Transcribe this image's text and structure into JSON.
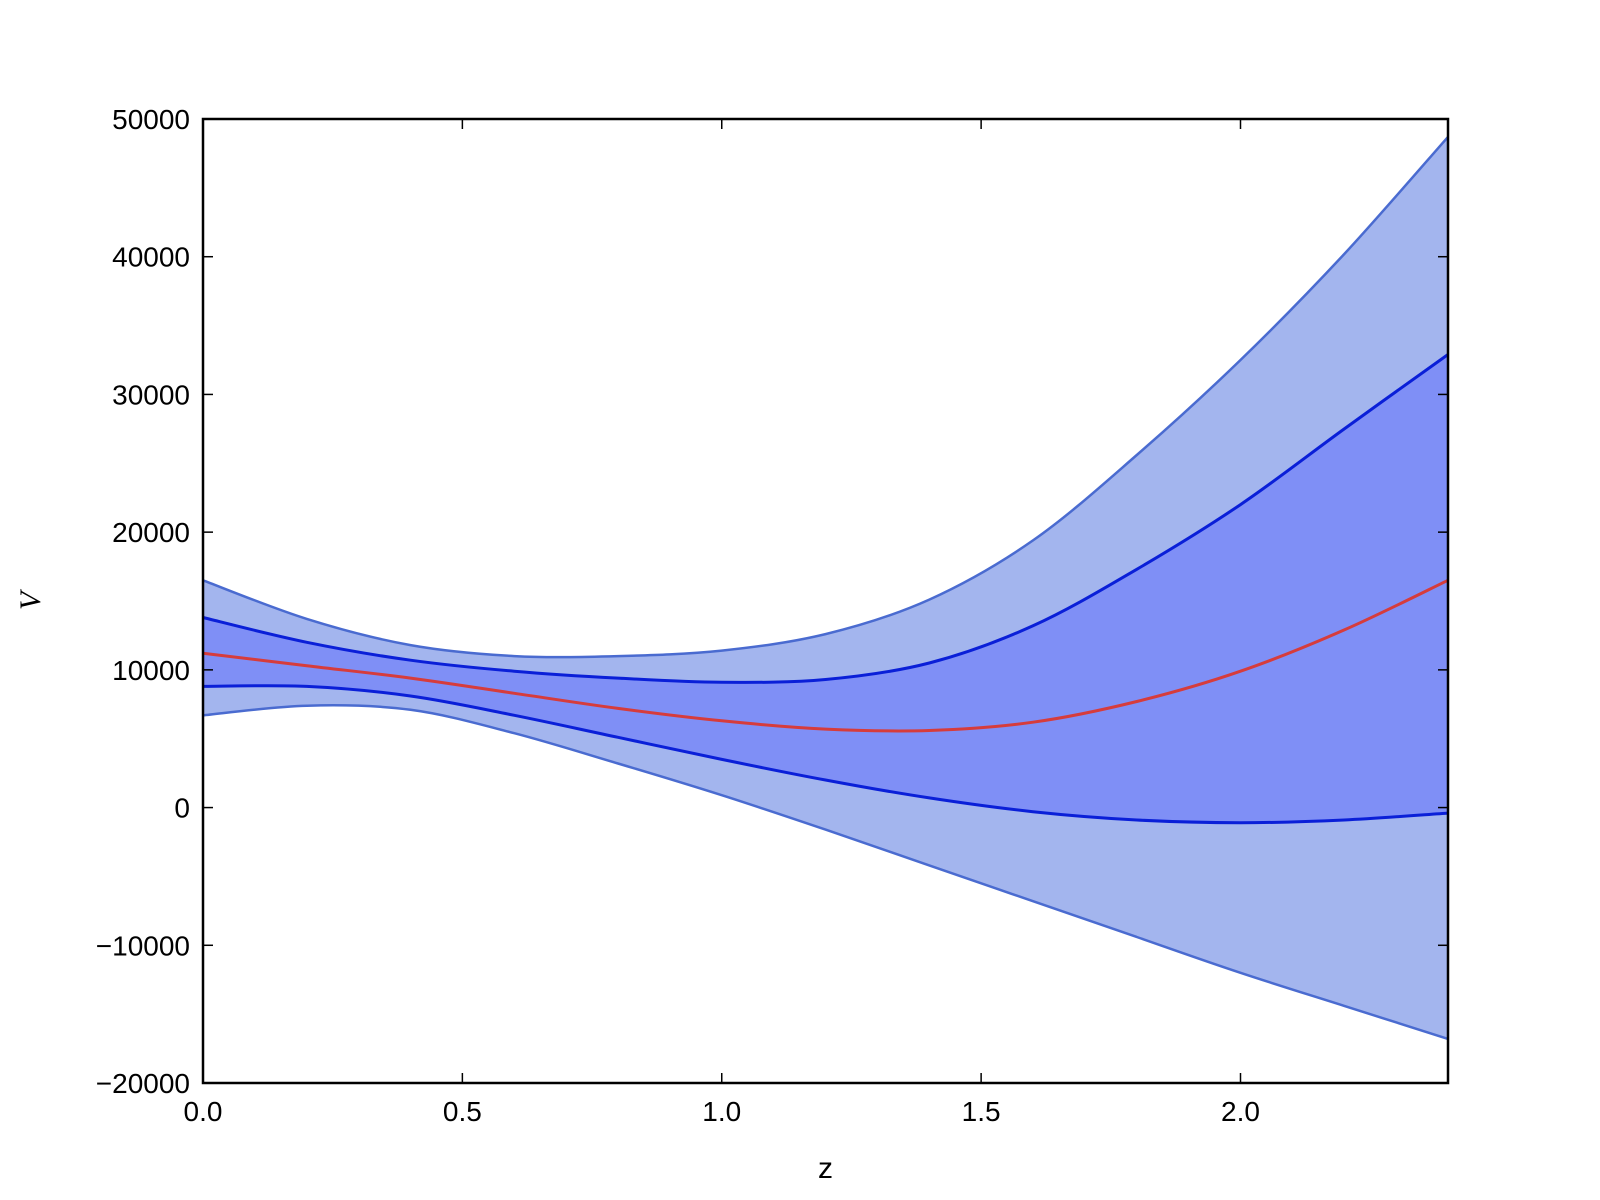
{
  "chart_data": {
    "type": "area",
    "title": "",
    "xlabel": "z",
    "ylabel": "V",
    "xlim": [
      0.0,
      2.4
    ],
    "ylim": [
      -20000,
      50000
    ],
    "xticks": [
      0.0,
      0.5,
      1.0,
      1.5,
      2.0
    ],
    "xtick_labels": [
      "0.0",
      "0.5",
      "1.0",
      "1.5",
      "2.0"
    ],
    "yticks": [
      -20000,
      -10000,
      0,
      10000,
      20000,
      30000,
      40000,
      50000
    ],
    "ytick_labels": [
      "−20000",
      "−10000",
      "0",
      "10000",
      "20000",
      "30000",
      "40000",
      "50000"
    ],
    "grid": false,
    "x": [
      0.0,
      0.2,
      0.4,
      0.6,
      0.8,
      1.0,
      1.2,
      1.4,
      1.6,
      1.8,
      2.0,
      2.2,
      2.4
    ],
    "series": [
      {
        "role": "outer_upper",
        "color": "#4a6bd0",
        "values": [
          16500,
          13700,
          11800,
          11000,
          11000,
          11400,
          12600,
          15100,
          19400,
          25600,
          32500,
          40200,
          48700
        ]
      },
      {
        "role": "inner_upper",
        "color": "#0a1fd8",
        "values": [
          13800,
          12000,
          10700,
          9900,
          9400,
          9100,
          9300,
          10500,
          13200,
          17300,
          22000,
          27500,
          32900
        ]
      },
      {
        "role": "mean",
        "color": "#d63c3c",
        "values": [
          11200,
          10300,
          9400,
          8300,
          7200,
          6300,
          5700,
          5600,
          6200,
          7700,
          9900,
          12900,
          16500
        ]
      },
      {
        "role": "inner_lower",
        "color": "#0a1fd8",
        "values": [
          8800,
          8800,
          8100,
          6700,
          5100,
          3500,
          2000,
          700,
          -300,
          -900,
          -1100,
          -900,
          -400
        ]
      },
      {
        "role": "outer_lower",
        "color": "#4a6bd0",
        "values": [
          6700,
          7400,
          7100,
          5400,
          3200,
          900,
          -1600,
          -4200,
          -6800,
          -9400,
          -12000,
          -14400,
          -16800
        ]
      }
    ],
    "band_colors": {
      "outer": "#a3b5ee",
      "inner": "#7f8ff6"
    }
  }
}
